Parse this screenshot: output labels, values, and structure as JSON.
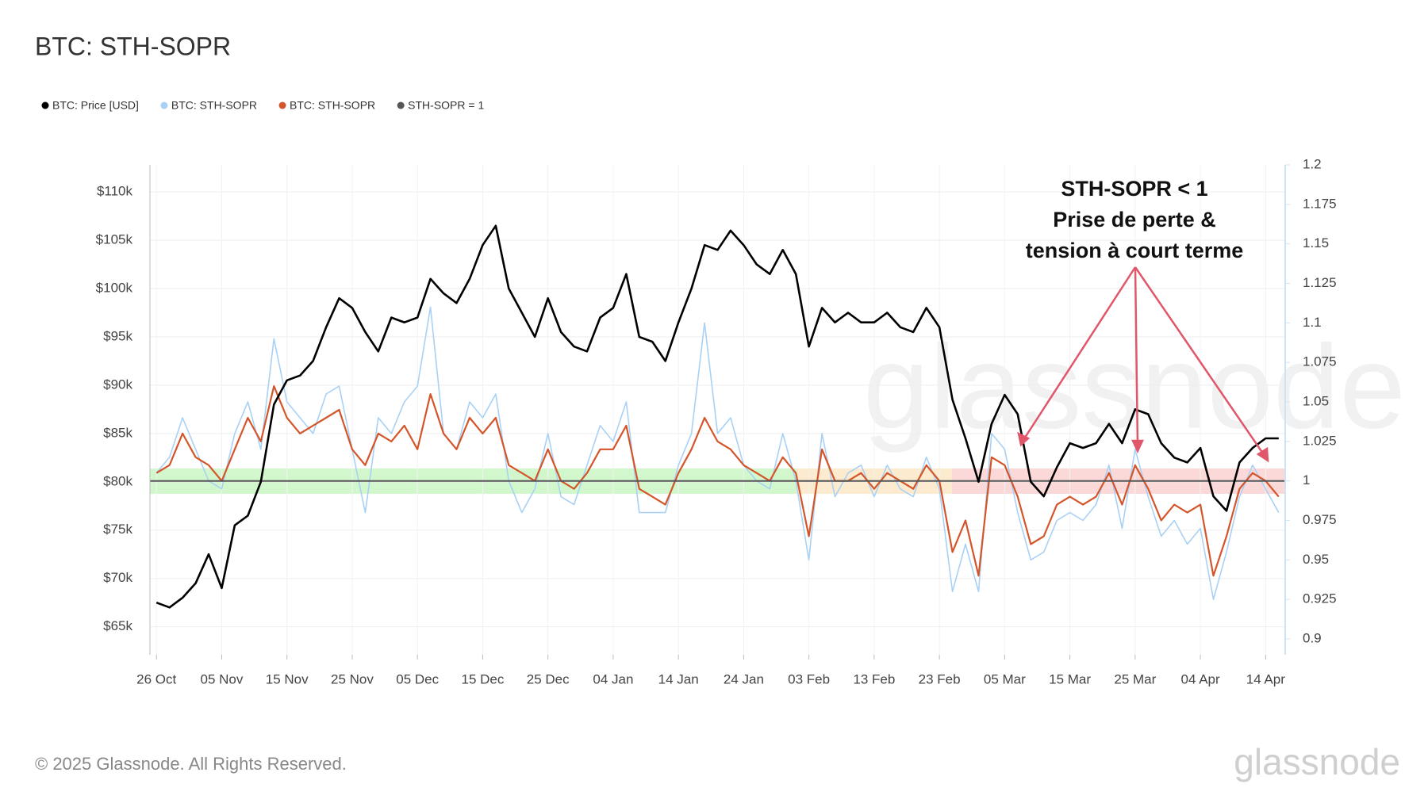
{
  "chart_data": {
    "type": "line",
    "title": "BTC: STH-SOPR",
    "x": [
      0,
      2,
      4,
      6,
      8,
      10,
      12,
      14,
      16,
      18,
      20,
      22,
      24,
      26,
      28,
      30,
      32,
      34,
      36,
      38,
      40,
      42,
      44,
      46,
      48,
      50,
      52,
      54,
      56,
      58,
      60,
      62,
      64,
      66,
      68,
      70,
      72,
      74,
      76,
      78,
      80,
      82,
      84,
      86,
      88,
      90,
      92,
      94,
      96,
      98,
      100,
      102,
      104,
      106,
      108,
      110,
      112,
      114,
      116,
      118,
      120,
      122,
      124,
      126,
      128,
      130,
      132,
      134,
      136,
      138,
      140,
      142,
      144,
      146,
      148,
      150,
      152,
      154,
      156,
      158,
      160,
      162,
      164,
      166,
      168,
      170,
      172
    ],
    "xlim": [
      -1,
      173
    ],
    "xticks": [
      {
        "value": 0,
        "label": "26 Oct"
      },
      {
        "value": 10,
        "label": "05 Nov"
      },
      {
        "value": 20,
        "label": "15 Nov"
      },
      {
        "value": 30,
        "label": "25 Nov"
      },
      {
        "value": 40,
        "label": "05 Dec"
      },
      {
        "value": 50,
        "label": "15 Dec"
      },
      {
        "value": 60,
        "label": "25 Dec"
      },
      {
        "value": 70,
        "label": "04 Jan"
      },
      {
        "value": 80,
        "label": "14 Jan"
      },
      {
        "value": 90,
        "label": "24 Jan"
      },
      {
        "value": 100,
        "label": "03 Feb"
      },
      {
        "value": 110,
        "label": "13 Feb"
      },
      {
        "value": 120,
        "label": "23 Feb"
      },
      {
        "value": 130,
        "label": "05 Mar"
      },
      {
        "value": 140,
        "label": "15 Mar"
      },
      {
        "value": 150,
        "label": "25 Mar"
      },
      {
        "value": 160,
        "label": "04 Apr"
      },
      {
        "value": 170,
        "label": "14 Apr"
      }
    ],
    "ylim": [
      62100,
      112800
    ],
    "yticks": [
      {
        "value": 65000,
        "label": "$65k"
      },
      {
        "value": 70000,
        "label": "$70k"
      },
      {
        "value": 75000,
        "label": "$75k"
      },
      {
        "value": 80000,
        "label": "$80k"
      },
      {
        "value": 85000,
        "label": "$85k"
      },
      {
        "value": 90000,
        "label": "$90k"
      },
      {
        "value": 95000,
        "label": "$95k"
      },
      {
        "value": 100000,
        "label": "$100k"
      },
      {
        "value": 105000,
        "label": "$105k"
      },
      {
        "value": 110000,
        "label": "$110k"
      }
    ],
    "y2lim": [
      0.89,
      1.2
    ],
    "y2ticks": [
      0.9,
      0.925,
      0.95,
      0.975,
      1,
      1.025,
      1.05,
      1.075,
      1.1,
      1.125,
      1.15,
      1.175,
      1.2
    ],
    "grid": true,
    "series": [
      {
        "name": "BTC: Price [USD]",
        "color": "#000000",
        "values": [
          67500,
          67000,
          68000,
          69500,
          72500,
          69000,
          75500,
          76500,
          80000,
          88000,
          90500,
          91000,
          92500,
          96000,
          99000,
          98000,
          95500,
          93500,
          97000,
          96500,
          97000,
          101000,
          99500,
          98500,
          101000,
          104500,
          106500,
          100000,
          97500,
          95000,
          99000,
          95500,
          94000,
          93500,
          97000,
          98000,
          101500,
          95000,
          94500,
          92500,
          96500,
          100000,
          104500,
          104000,
          106000,
          104500,
          102500,
          101500,
          104000,
          101500,
          94000,
          98000,
          96500,
          97500,
          96500,
          96500,
          97500,
          96000,
          95500,
          98000,
          96000,
          88500,
          84500,
          80000,
          86000,
          89000,
          87000,
          80000,
          78500,
          81500,
          84000,
          83500,
          84000,
          86000,
          84000,
          87500,
          87000,
          84000,
          82500,
          82000,
          83500,
          78500,
          77000,
          82000,
          83500,
          84500,
          84500
        ]
      },
      {
        "name": "BTC: STH-SOPR",
        "color": "#a8d1f5",
        "axis": "y2",
        "values": [
          1.005,
          1.015,
          1.04,
          1.02,
          1.0,
          0.995,
          1.03,
          1.05,
          1.02,
          1.09,
          1.05,
          1.04,
          1.03,
          1.055,
          1.06,
          1.02,
          0.98,
          1.04,
          1.03,
          1.05,
          1.06,
          1.11,
          1.03,
          1.02,
          1.05,
          1.04,
          1.055,
          1.0,
          0.98,
          0.995,
          1.03,
          0.99,
          0.985,
          1.01,
          1.035,
          1.025,
          1.05,
          0.98,
          0.98,
          0.98,
          1.01,
          1.03,
          1.1,
          1.03,
          1.04,
          1.01,
          1.0,
          0.995,
          1.03,
          1.0,
          0.95,
          1.03,
          0.99,
          1.005,
          1.01,
          0.99,
          1.01,
          0.995,
          0.99,
          1.015,
          0.995,
          0.93,
          0.96,
          0.93,
          1.03,
          1.02,
          0.98,
          0.95,
          0.955,
          0.975,
          0.98,
          0.975,
          0.985,
          1.01,
          0.97,
          1.02,
          0.99,
          0.965,
          0.975,
          0.96,
          0.97,
          0.925,
          0.955,
          0.99,
          1.01,
          0.995,
          0.98
        ]
      },
      {
        "name": "BTC: STH-SOPR",
        "color": "#d4552a",
        "axis": "y2",
        "values": [
          1.005,
          1.01,
          1.03,
          1.015,
          1.01,
          1.0,
          1.02,
          1.04,
          1.025,
          1.06,
          1.04,
          1.03,
          1.035,
          1.04,
          1.045,
          1.02,
          1.01,
          1.03,
          1.025,
          1.035,
          1.02,
          1.055,
          1.03,
          1.02,
          1.04,
          1.03,
          1.04,
          1.01,
          1.005,
          1.0,
          1.02,
          1.0,
          0.995,
          1.005,
          1.02,
          1.02,
          1.035,
          0.995,
          0.99,
          0.985,
          1.005,
          1.02,
          1.04,
          1.025,
          1.02,
          1.01,
          1.005,
          1.0,
          1.015,
          1.005,
          0.965,
          1.02,
          1.0,
          1.0,
          1.005,
          0.995,
          1.005,
          1.0,
          0.995,
          1.01,
          1.0,
          0.955,
          0.975,
          0.94,
          1.015,
          1.01,
          0.99,
          0.96,
          0.965,
          0.985,
          0.99,
          0.985,
          0.99,
          1.005,
          0.985,
          1.01,
          0.995,
          0.975,
          0.985,
          0.98,
          0.985,
          0.94,
          0.965,
          0.995,
          1.005,
          1.0,
          0.99
        ]
      }
    ],
    "reference_line": {
      "name": "STH-SOPR = 1",
      "value": 1,
      "axis": "y2",
      "color": "#555555"
    },
    "annotation": [
      "STH-SOPR < 1",
      "Prise de perte &",
      "tension à court terme"
    ]
  },
  "footer": {
    "copyright": "© 2025 Glassnode. All Rights Reserved.",
    "logo": "glassnode"
  }
}
